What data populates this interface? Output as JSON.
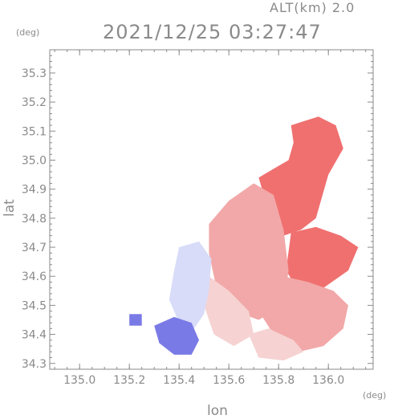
{
  "header": {
    "altitude_label": "ALT(km) 2.0",
    "timestamp": "2021/12/25 03:27:47"
  },
  "axes": {
    "y_unit": "(deg)",
    "x_unit": "(deg)",
    "ylabel": "lat",
    "xlabel": "lon"
  },
  "chart_data": {
    "type": "heatmap",
    "xlabel": "lon",
    "ylabel": "lat",
    "xlim": [
      134.88,
      136.18
    ],
    "ylim": [
      34.28,
      35.38
    ],
    "x_ticks": [
      {
        "value": 135.0,
        "label": "135.0"
      },
      {
        "value": 135.2,
        "label": "135.2"
      },
      {
        "value": 135.4,
        "label": "135.4"
      },
      {
        "value": 135.6,
        "label": "135.6"
      },
      {
        "value": 135.8,
        "label": "135.8"
      },
      {
        "value": 136.0,
        "label": "136.0"
      }
    ],
    "y_ticks": [
      {
        "value": 34.3,
        "label": "34.3"
      },
      {
        "value": 34.4,
        "label": "34.4"
      },
      {
        "value": 34.5,
        "label": "34.5"
      },
      {
        "value": 34.6,
        "label": "34.6"
      },
      {
        "value": 34.7,
        "label": "34.7"
      },
      {
        "value": 34.8,
        "label": "34.8"
      },
      {
        "value": 34.9,
        "label": "34.9"
      },
      {
        "value": 35.0,
        "label": "35.0"
      },
      {
        "value": 35.1,
        "label": "35.1"
      },
      {
        "value": 35.2,
        "label": "35.2"
      },
      {
        "value": 35.3,
        "label": "35.3"
      }
    ],
    "grid": false,
    "colors": {
      "approaching": "#7a7ae6",
      "approaching_light": "#d8dcf8",
      "receding_light": "#f6d2d2",
      "receding_mid": "#f2a8a8",
      "receding_strong": "#f07070",
      "frame": "#8a8a8a"
    },
    "regions": [
      {
        "name": "strong-receding-north",
        "color": "receding_strong",
        "lonlat": [
          [
            135.85,
            35.12
          ],
          [
            135.96,
            35.15
          ],
          [
            136.03,
            35.12
          ],
          [
            136.06,
            35.04
          ],
          [
            136.0,
            34.95
          ],
          [
            135.97,
            34.86
          ],
          [
            135.95,
            34.8
          ],
          [
            135.89,
            34.76
          ],
          [
            135.82,
            34.74
          ],
          [
            135.78,
            34.8
          ],
          [
            135.74,
            34.88
          ],
          [
            135.72,
            34.94
          ],
          [
            135.78,
            34.97
          ],
          [
            135.84,
            35.0
          ],
          [
            135.86,
            35.06
          ]
        ]
      },
      {
        "name": "strong-receding-east",
        "color": "receding_strong",
        "lonlat": [
          [
            135.85,
            34.75
          ],
          [
            135.95,
            34.77
          ],
          [
            136.05,
            34.74
          ],
          [
            136.12,
            34.7
          ],
          [
            136.08,
            34.62
          ],
          [
            135.98,
            34.56
          ],
          [
            135.88,
            34.55
          ],
          [
            135.83,
            34.62
          ]
        ]
      },
      {
        "name": "mid-receding-center",
        "color": "receding_mid",
        "lonlat": [
          [
            135.52,
            34.78
          ],
          [
            135.6,
            34.86
          ],
          [
            135.7,
            34.92
          ],
          [
            135.78,
            34.88
          ],
          [
            135.82,
            34.76
          ],
          [
            135.84,
            34.62
          ],
          [
            135.82,
            34.5
          ],
          [
            135.72,
            34.45
          ],
          [
            135.62,
            34.48
          ],
          [
            135.55,
            34.56
          ],
          [
            135.52,
            34.68
          ]
        ]
      },
      {
        "name": "mid-receding-east",
        "color": "receding_mid",
        "lonlat": [
          [
            135.72,
            34.58
          ],
          [
            135.82,
            34.6
          ],
          [
            135.92,
            34.58
          ],
          [
            136.02,
            34.55
          ],
          [
            136.08,
            34.5
          ],
          [
            136.06,
            34.42
          ],
          [
            135.98,
            34.36
          ],
          [
            135.88,
            34.34
          ],
          [
            135.78,
            34.4
          ],
          [
            135.72,
            34.48
          ]
        ]
      },
      {
        "name": "light-receding-south",
        "color": "receding_light",
        "lonlat": [
          [
            135.52,
            34.6
          ],
          [
            135.6,
            34.55
          ],
          [
            135.68,
            34.48
          ],
          [
            135.7,
            34.4
          ],
          [
            135.62,
            34.36
          ],
          [
            135.54,
            34.4
          ],
          [
            135.5,
            34.5
          ]
        ]
      },
      {
        "name": "light-receding-southeast",
        "color": "receding_light",
        "lonlat": [
          [
            135.68,
            34.4
          ],
          [
            135.76,
            34.42
          ],
          [
            135.86,
            34.38
          ],
          [
            135.9,
            34.34
          ],
          [
            135.82,
            34.31
          ],
          [
            135.72,
            34.32
          ]
        ]
      },
      {
        "name": "light-approaching-west",
        "color": "approaching_light",
        "lonlat": [
          [
            135.4,
            34.7
          ],
          [
            135.48,
            34.72
          ],
          [
            135.53,
            34.66
          ],
          [
            135.52,
            34.55
          ],
          [
            135.5,
            34.47
          ],
          [
            135.46,
            34.42
          ],
          [
            135.4,
            34.44
          ],
          [
            135.36,
            34.52
          ],
          [
            135.38,
            34.62
          ]
        ]
      },
      {
        "name": "approaching-southwest",
        "color": "approaching",
        "lonlat": [
          [
            135.3,
            34.43
          ],
          [
            135.38,
            34.46
          ],
          [
            135.45,
            34.44
          ],
          [
            135.48,
            34.38
          ],
          [
            135.45,
            34.33
          ],
          [
            135.38,
            34.33
          ],
          [
            135.32,
            34.37
          ]
        ]
      },
      {
        "name": "approaching-patch-west",
        "color": "approaching",
        "lonlat": [
          [
            135.2,
            34.47
          ],
          [
            135.25,
            34.47
          ],
          [
            135.25,
            34.43
          ],
          [
            135.2,
            34.43
          ]
        ]
      }
    ]
  }
}
